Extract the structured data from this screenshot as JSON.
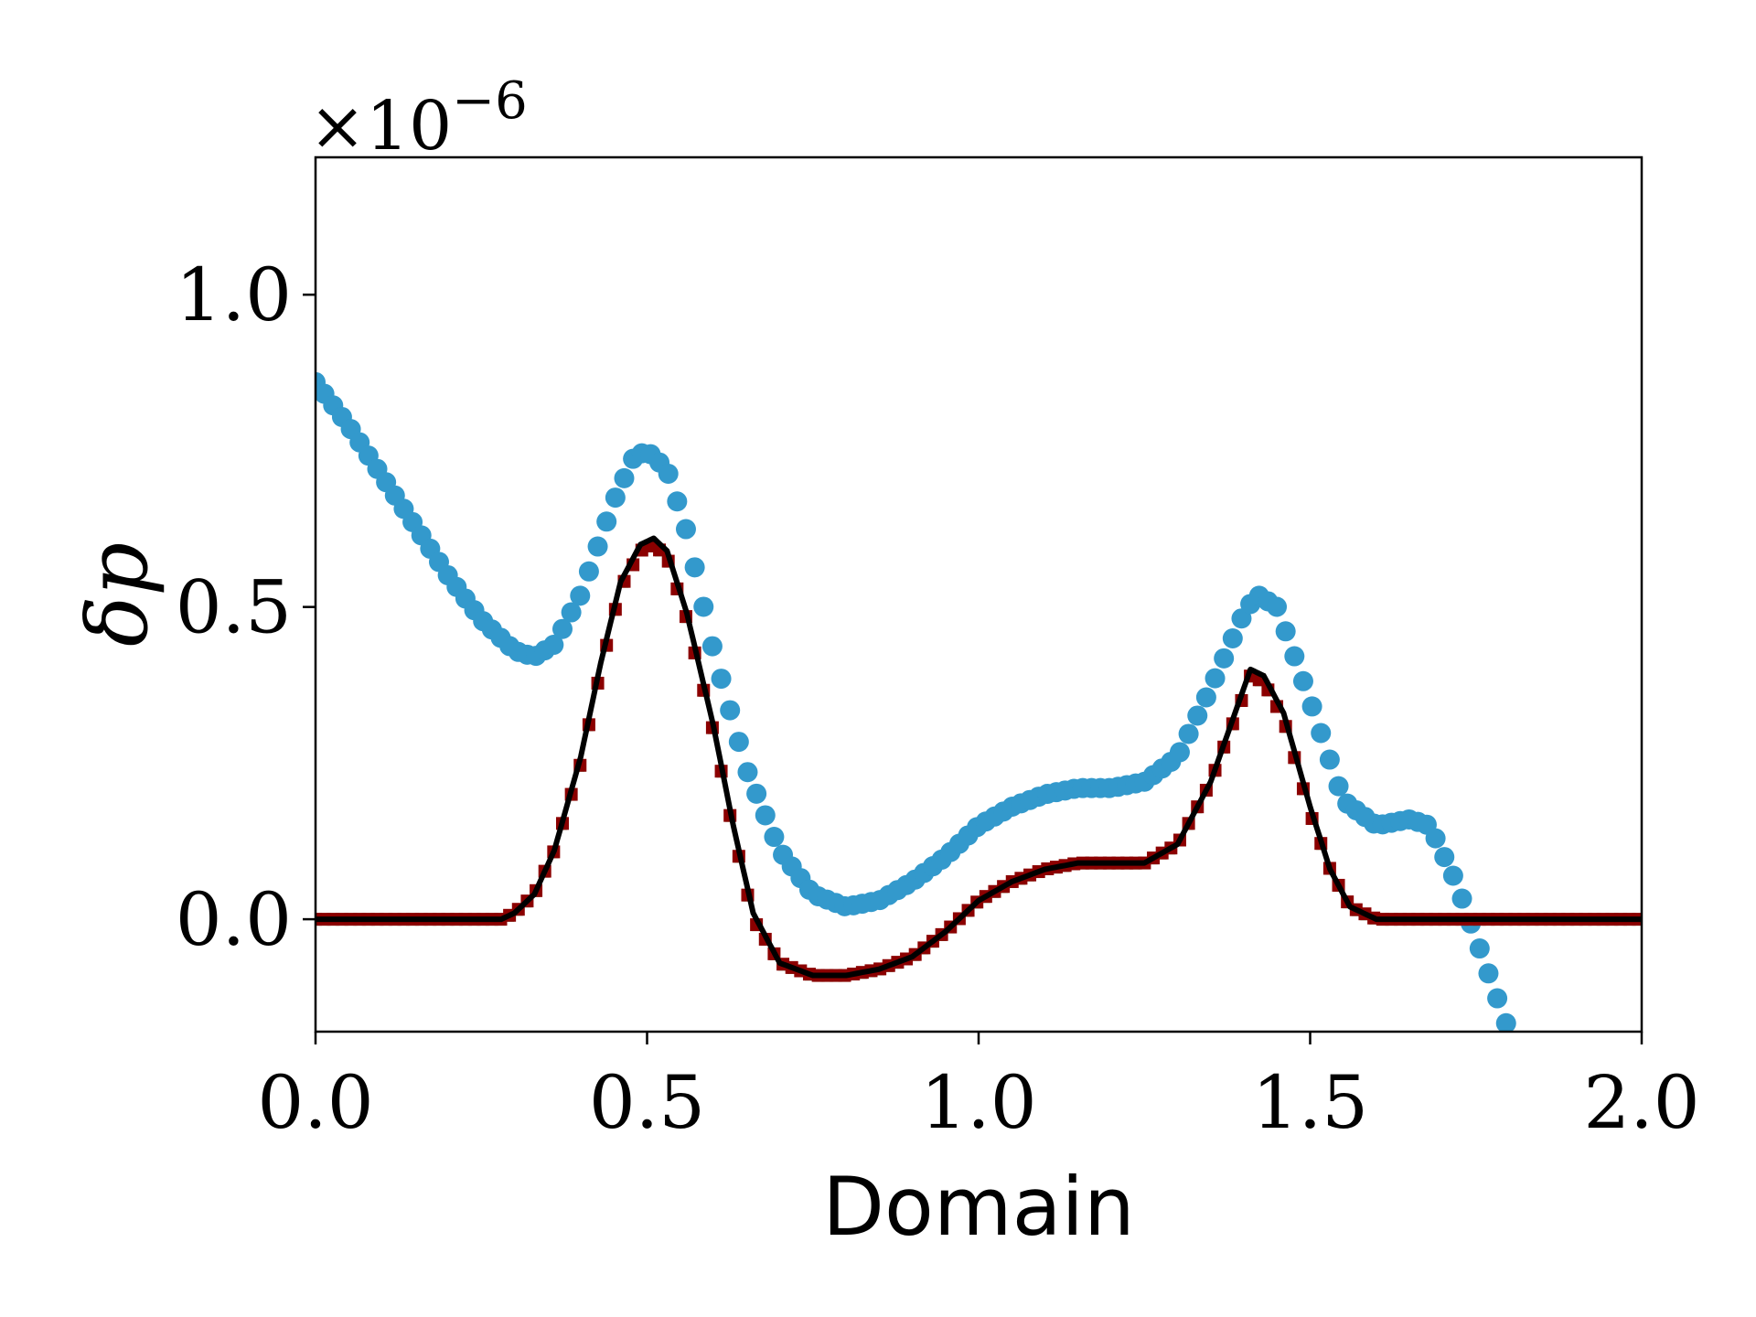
{
  "chart_data": {
    "type": "scatter",
    "title": "",
    "xlabel": "Domain",
    "ylabel": "δp",
    "y_offset_text": "×10",
    "y_offset_exponent": "−6",
    "xlim": [
      0.0,
      2.0
    ],
    "ylim": [
      -0.18,
      1.22
    ],
    "grid": false,
    "legend": "none",
    "x_ticks": [
      {
        "value": 0.0,
        "label": "0.0"
      },
      {
        "value": 0.5,
        "label": "0.5"
      },
      {
        "value": 1.0,
        "label": "1.0"
      },
      {
        "value": 1.5,
        "label": "1.5"
      },
      {
        "value": 2.0,
        "label": "2.0"
      }
    ],
    "y_ticks": [
      {
        "value": 0.0,
        "label": "0.0"
      },
      {
        "value": 0.5,
        "label": "0.5"
      },
      {
        "value": 1.0,
        "label": "1.0"
      }
    ],
    "colors": {
      "blue_series": "#3399cc",
      "red_series": "#8b0000",
      "green_series": "#2e7d32",
      "black_line": "#000000"
    },
    "series": [
      {
        "style": "circles",
        "color": "#3399cc",
        "x": [
          0.0,
          0.05,
          0.1,
          0.15,
          0.2,
          0.25,
          0.3,
          0.33,
          0.36,
          0.4,
          0.45,
          0.48,
          0.5,
          0.53,
          0.56,
          0.6,
          0.65,
          0.7,
          0.75,
          0.8,
          0.85,
          0.9,
          0.95,
          1.0,
          1.05,
          1.1,
          1.15,
          1.2,
          1.25,
          1.3,
          1.35,
          1.4,
          1.42,
          1.45,
          1.5,
          1.55,
          1.6,
          1.65,
          1.68,
          1.72,
          1.76,
          1.8
        ],
        "y": [
          0.86,
          0.79,
          0.71,
          0.63,
          0.55,
          0.48,
          0.43,
          0.42,
          0.44,
          0.52,
          0.67,
          0.74,
          0.75,
          0.72,
          0.62,
          0.43,
          0.24,
          0.11,
          0.04,
          0.02,
          0.03,
          0.06,
          0.1,
          0.15,
          0.18,
          0.2,
          0.21,
          0.21,
          0.22,
          0.26,
          0.37,
          0.49,
          0.52,
          0.5,
          0.35,
          0.19,
          0.15,
          0.16,
          0.15,
          0.06,
          -0.06,
          -0.18
        ]
      },
      {
        "style": "squares",
        "color": "#8b0000",
        "x": [
          0.0,
          0.05,
          0.1,
          0.15,
          0.2,
          0.25,
          0.28,
          0.3,
          0.33,
          0.36,
          0.4,
          0.43,
          0.46,
          0.49,
          0.51,
          0.53,
          0.56,
          0.6,
          0.63,
          0.66,
          0.7,
          0.75,
          0.8,
          0.85,
          0.9,
          0.95,
          1.0,
          1.05,
          1.1,
          1.15,
          1.2,
          1.25,
          1.3,
          1.35,
          1.4,
          1.41,
          1.43,
          1.46,
          1.5,
          1.53,
          1.56,
          1.6,
          1.65,
          1.7,
          1.75,
          1.8,
          1.85,
          1.9,
          1.95,
          2.0
        ],
        "y": [
          0.0,
          0.0,
          0.0,
          0.0,
          0.0,
          0.0,
          0.0,
          0.01,
          0.04,
          0.11,
          0.25,
          0.4,
          0.53,
          0.59,
          0.6,
          0.58,
          0.48,
          0.3,
          0.14,
          0.0,
          -0.07,
          -0.09,
          -0.09,
          -0.08,
          -0.06,
          -0.02,
          0.03,
          0.06,
          0.08,
          0.09,
          0.09,
          0.09,
          0.12,
          0.22,
          0.36,
          0.39,
          0.38,
          0.32,
          0.17,
          0.08,
          0.02,
          0.0,
          0.0,
          0.0,
          0.0,
          0.0,
          0.0,
          0.0,
          0.0,
          0.0
        ]
      },
      {
        "style": "line",
        "color": "#000000",
        "x": [
          0.0,
          0.05,
          0.1,
          0.15,
          0.2,
          0.25,
          0.28,
          0.3,
          0.33,
          0.36,
          0.4,
          0.43,
          0.46,
          0.49,
          0.51,
          0.53,
          0.56,
          0.6,
          0.63,
          0.66,
          0.7,
          0.75,
          0.8,
          0.85,
          0.9,
          0.95,
          1.0,
          1.05,
          1.1,
          1.15,
          1.2,
          1.25,
          1.3,
          1.35,
          1.4,
          1.41,
          1.43,
          1.46,
          1.5,
          1.53,
          1.56,
          1.6,
          1.65,
          1.7,
          1.75,
          1.8,
          1.85,
          1.9,
          1.95,
          2.0
        ],
        "y": [
          0.0,
          0.0,
          0.0,
          0.0,
          0.0,
          0.0,
          0.0,
          0.01,
          0.04,
          0.11,
          0.26,
          0.41,
          0.54,
          0.6,
          0.61,
          0.59,
          0.49,
          0.31,
          0.15,
          0.01,
          -0.07,
          -0.09,
          -0.09,
          -0.08,
          -0.06,
          -0.02,
          0.03,
          0.06,
          0.08,
          0.09,
          0.09,
          0.09,
          0.12,
          0.22,
          0.37,
          0.4,
          0.39,
          0.33,
          0.18,
          0.08,
          0.02,
          0.0,
          0.0,
          0.0,
          0.0,
          0.0,
          0.0,
          0.0,
          0.0,
          0.0
        ]
      }
    ]
  }
}
